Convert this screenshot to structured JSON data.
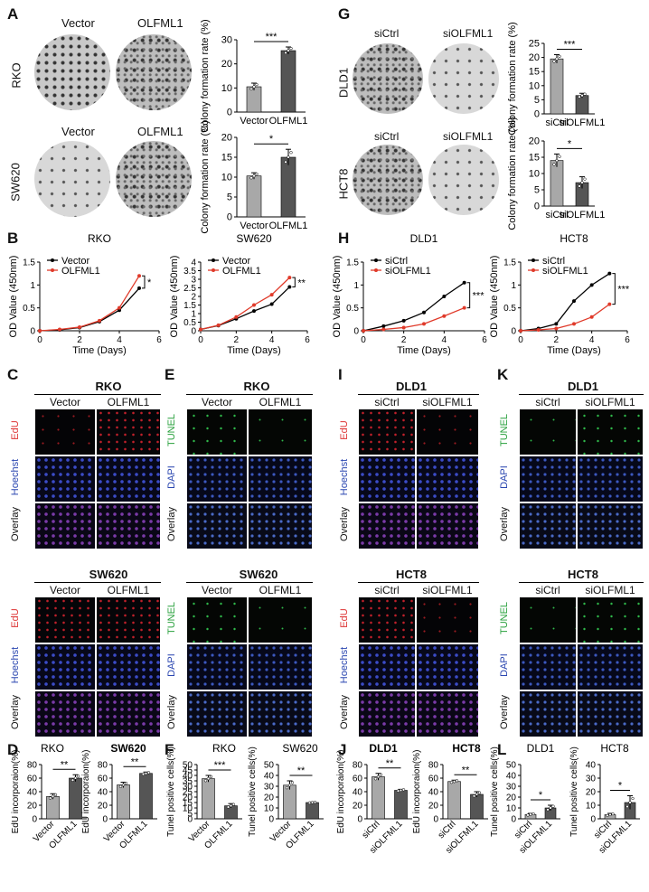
{
  "panels": {
    "A": "A",
    "B": "B",
    "C": "C",
    "D": "D",
    "E": "E",
    "F": "F",
    "G": "G",
    "H": "H",
    "I": "I",
    "J": "J",
    "K": "K",
    "L": "L"
  },
  "text": {
    "vector": "Vector",
    "olfml1": "OLFML1",
    "sictrl": "siCtrl",
    "siolfml1": "siOLFML1",
    "rko": "RKO",
    "sw620": "SW620",
    "dld1": "DLD1",
    "hct8": "HCT8",
    "edu": "EdU",
    "hoechst": "Hoechst",
    "overlay": "Overlay",
    "tunel": "TUNEL",
    "dapi": "DAPI",
    "colony_ylabel": "Colony formation rate (%)",
    "od_ylabel": "OD Value (450nm)",
    "time_xlabel": "Time (Days)",
    "edu_ylabel": "EdU incorporaion(%)",
    "tunel_ylabel": "Tunel positive cells(%)"
  },
  "chart_data": [
    {
      "id": "A-RKO",
      "type": "bar",
      "categories": [
        "Vector",
        "OLFML1"
      ],
      "values": [
        10.5,
        25.5
      ],
      "errors": [
        1.5,
        1.5
      ],
      "ylim": [
        0,
        30
      ],
      "yticks": [
        0,
        10,
        20,
        30
      ],
      "ylabel": "Colony formation rate (%)",
      "signif": "***"
    },
    {
      "id": "A-SW620",
      "type": "bar",
      "categories": [
        "Vector",
        "OLFML1"
      ],
      "values": [
        10.3,
        15
      ],
      "errors": [
        0.8,
        2
      ],
      "ylim": [
        0,
        20
      ],
      "yticks": [
        0,
        5,
        10,
        15,
        20
      ],
      "ylabel": "Colony formation rate (%)",
      "signif": "*"
    },
    {
      "id": "G-DLD1",
      "type": "bar",
      "categories": [
        "siCtrl",
        "siOLFML1"
      ],
      "values": [
        19.5,
        6.5
      ],
      "errors": [
        1.5,
        0.8
      ],
      "ylim": [
        0,
        25
      ],
      "yticks": [
        0,
        5,
        10,
        15,
        20,
        25
      ],
      "ylabel": "Colony formation rate (%)",
      "signif": "***"
    },
    {
      "id": "G-HCT8",
      "type": "bar",
      "categories": [
        "siCtrl",
        "siOLFML1"
      ],
      "values": [
        14,
        7.2
      ],
      "errors": [
        2,
        1.8
      ],
      "ylim": [
        0,
        20
      ],
      "yticks": [
        0,
        5,
        10,
        15,
        20
      ],
      "ylabel": "Colony formation rate (%)",
      "signif": "*"
    },
    {
      "id": "B-RKO",
      "type": "line",
      "title": "RKO",
      "x": [
        0,
        1,
        2,
        3,
        4,
        5
      ],
      "series": [
        {
          "name": "Vector",
          "color": "#000000",
          "values": [
            0,
            0.02,
            0.07,
            0.2,
            0.45,
            0.93
          ]
        },
        {
          "name": "OLFML1",
          "color": "#e03a2a",
          "values": [
            0,
            0.03,
            0.08,
            0.22,
            0.5,
            1.2
          ]
        }
      ],
      "xlim": [
        0,
        6
      ],
      "xticks": [
        0,
        2,
        4,
        6
      ],
      "ylim": [
        0,
        1.5
      ],
      "yticks": [
        0,
        0.5,
        1.0,
        1.5
      ],
      "xlabel": "Time (Days)",
      "ylabel": "OD Value (450nm)",
      "signif": "*"
    },
    {
      "id": "B-SW620",
      "type": "line",
      "title": "SW620",
      "x": [
        0,
        1,
        2,
        3,
        4,
        5
      ],
      "series": [
        {
          "name": "Vector",
          "color": "#000000",
          "values": [
            0.08,
            0.3,
            0.7,
            1.15,
            1.55,
            2.55
          ]
        },
        {
          "name": "OLFML1",
          "color": "#e03a2a",
          "values": [
            0.08,
            0.32,
            0.8,
            1.5,
            2.1,
            3.1
          ]
        }
      ],
      "xlim": [
        0,
        6
      ],
      "xticks": [
        0,
        2,
        4,
        6
      ],
      "ylim": [
        0,
        4.0
      ],
      "yticks": [
        0,
        0.5,
        1.0,
        1.5,
        2.0,
        2.5,
        3.0,
        3.5,
        4.0
      ],
      "xlabel": "Time (Days)",
      "ylabel": "OD Value (450nm)",
      "signif": "**"
    },
    {
      "id": "H-DLD1",
      "type": "line",
      "title": "DLD1",
      "x": [
        0,
        1,
        2,
        3,
        4,
        5
      ],
      "series": [
        {
          "name": "siCtrl",
          "color": "#000000",
          "values": [
            0,
            0.1,
            0.22,
            0.4,
            0.75,
            1.05
          ]
        },
        {
          "name": "siOLFML1",
          "color": "#e03a2a",
          "values": [
            0,
            0.03,
            0.07,
            0.15,
            0.32,
            0.5
          ]
        }
      ],
      "xlim": [
        0,
        6
      ],
      "xticks": [
        0,
        2,
        4,
        6
      ],
      "ylim": [
        0,
        1.5
      ],
      "yticks": [
        0,
        0.5,
        1.0,
        1.5
      ],
      "xlabel": "Time (Days)",
      "ylabel": "OD Value (450nm)",
      "signif": "***"
    },
    {
      "id": "H-HCT8",
      "type": "line",
      "title": "HCT8",
      "x": [
        0,
        1,
        2,
        3,
        4,
        5
      ],
      "series": [
        {
          "name": "siCtrl",
          "color": "#000000",
          "values": [
            0,
            0.05,
            0.15,
            0.65,
            1.0,
            1.25
          ]
        },
        {
          "name": "siOLFML1",
          "color": "#e03a2a",
          "values": [
            0,
            0.02,
            0.05,
            0.15,
            0.3,
            0.58
          ]
        }
      ],
      "xlim": [
        0,
        6
      ],
      "xticks": [
        0,
        2,
        4,
        6
      ],
      "ylim": [
        0,
        1.5
      ],
      "yticks": [
        0,
        0.5,
        1.0,
        1.5
      ],
      "xlabel": "Time (Days)",
      "ylabel": "OD Value (450nm)",
      "signif": "***"
    },
    {
      "id": "D-RKO",
      "type": "bar",
      "title": "RKO",
      "categories": [
        "Vector",
        "OLFML1"
      ],
      "values": [
        33,
        60
      ],
      "errors": [
        4,
        5
      ],
      "ylim": [
        0,
        80
      ],
      "yticks": [
        0,
        20,
        40,
        60,
        80
      ],
      "ylabel": "EdU incorporaion(%)",
      "signif": "**"
    },
    {
      "id": "D-SW620",
      "type": "bar",
      "title": "SW620",
      "categories": [
        "Vector",
        "OLFML1"
      ],
      "values": [
        50,
        67
      ],
      "errors": [
        4,
        2
      ],
      "ylim": [
        0,
        80
      ],
      "yticks": [
        0,
        20,
        40,
        60,
        80
      ],
      "ylabel": "EdU incorporaion(%)",
      "signif": "**"
    },
    {
      "id": "F-RKO",
      "type": "bar",
      "title": "RKO",
      "categories": [
        "Vector",
        "OLFML1"
      ],
      "values": [
        37,
        12
      ],
      "errors": [
        3,
        2
      ],
      "ylim": [
        0,
        50
      ],
      "yticks": [
        0,
        5,
        10,
        15,
        20,
        25,
        30,
        35,
        40,
        45,
        50
      ],
      "ylabel": "Tunel positive cells(%)",
      "signif": "***"
    },
    {
      "id": "F-SW620",
      "type": "bar",
      "title": "SW620",
      "categories": [
        "Vector",
        "OLFML1"
      ],
      "values": [
        31,
        15
      ],
      "errors": [
        4,
        0.5
      ],
      "ylim": [
        0,
        50
      ],
      "yticks": [
        0,
        10,
        20,
        30,
        40,
        50
      ],
      "ylabel": "Tunel positive cells(%)",
      "signif": "**"
    },
    {
      "id": "J-DLD1",
      "type": "bar",
      "title": "DLD1",
      "categories": [
        "siCtrl",
        "siOLFML1"
      ],
      "values": [
        62,
        42
      ],
      "errors": [
        5,
        1.5
      ],
      "ylim": [
        0,
        80
      ],
      "yticks": [
        0,
        20,
        40,
        60,
        80
      ],
      "ylabel": "EdU incorporaion(%)",
      "signif": "**"
    },
    {
      "id": "J-HCT8",
      "type": "bar",
      "title": "HCT8",
      "categories": [
        "siCtrl",
        "siOLFML1"
      ],
      "values": [
        55,
        36
      ],
      "errors": [
        2,
        4
      ],
      "ylim": [
        0,
        80
      ],
      "yticks": [
        0,
        20,
        40,
        60,
        80
      ],
      "ylabel": "EdU incorporaion(%)",
      "signif": "**"
    },
    {
      "id": "L-DLD1",
      "type": "bar",
      "title": "DLD1",
      "categories": [
        "siCtrl",
        "siOLFML1"
      ],
      "values": [
        4,
        10
      ],
      "errors": [
        1,
        2.5
      ],
      "ylim": [
        0,
        50
      ],
      "yticks": [
        0,
        10,
        20,
        30,
        40,
        50
      ],
      "ylabel": "Tunel positive cells(%)",
      "signif": "*"
    },
    {
      "id": "L-HCT8",
      "type": "bar",
      "title": "HCT8",
      "categories": [
        "siCtrl",
        "siOLFML1"
      ],
      "values": [
        3,
        12
      ],
      "errors": [
        1,
        5
      ],
      "ylim": [
        0,
        40
      ],
      "yticks": [
        0,
        10,
        20,
        30,
        40
      ],
      "ylabel": "Tunel positive cells(%)",
      "signif": "*"
    }
  ]
}
